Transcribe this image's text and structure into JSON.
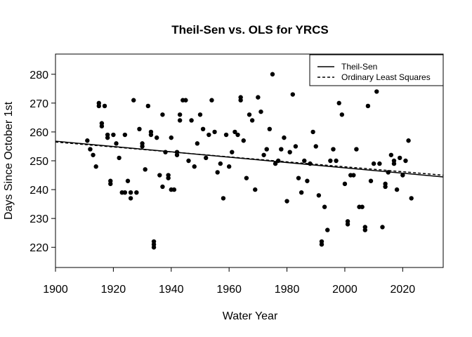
{
  "chart_data": {
    "type": "scatter",
    "title": "Theil-Sen vs. OLS for YRCS",
    "xlabel": "Water Year",
    "ylabel": "Days Since October 1st",
    "xlim": [
      1900,
      2034
    ],
    "ylim": [
      213,
      287
    ],
    "x_ticks": [
      1900,
      1920,
      1940,
      1960,
      1980,
      2000,
      2020
    ],
    "y_ticks": [
      220,
      230,
      240,
      250,
      260,
      270,
      280
    ],
    "grid": false,
    "legend": {
      "position": "top-right",
      "entries": [
        {
          "label": "Theil-Sen",
          "style": "solid"
        },
        {
          "label": "Ordinary Least Squares",
          "style": "dashed"
        }
      ]
    },
    "lines": [
      {
        "name": "Theil-Sen",
        "style": "solid",
        "points": [
          [
            1900,
            256.8
          ],
          [
            2034,
            244.4
          ]
        ]
      },
      {
        "name": "Ordinary Least Squares",
        "style": "dashed",
        "points": [
          [
            1900,
            256.5
          ],
          [
            2034,
            245.0
          ]
        ]
      }
    ],
    "points": [
      [
        1911,
        257
      ],
      [
        1912,
        254
      ],
      [
        1913,
        252
      ],
      [
        1914,
        248
      ],
      [
        1915,
        270
      ],
      [
        1915,
        269
      ],
      [
        1916,
        263
      ],
      [
        1916,
        262
      ],
      [
        1917,
        269
      ],
      [
        1918,
        259
      ],
      [
        1918,
        258
      ],
      [
        1919,
        243
      ],
      [
        1919,
        242
      ],
      [
        1920,
        259
      ],
      [
        1921,
        256
      ],
      [
        1922,
        251
      ],
      [
        1923,
        239
      ],
      [
        1924,
        259
      ],
      [
        1924,
        239
      ],
      [
        1925,
        243
      ],
      [
        1926,
        239
      ],
      [
        1926,
        237
      ],
      [
        1927,
        271
      ],
      [
        1928,
        239
      ],
      [
        1929,
        261
      ],
      [
        1930,
        256
      ],
      [
        1930,
        255
      ],
      [
        1931,
        247
      ],
      [
        1932,
        269
      ],
      [
        1933,
        260
      ],
      [
        1933,
        259
      ],
      [
        1934,
        222
      ],
      [
        1934,
        221
      ],
      [
        1934,
        220
      ],
      [
        1935,
        258
      ],
      [
        1936,
        245
      ],
      [
        1937,
        266
      ],
      [
        1937,
        241
      ],
      [
        1938,
        253
      ],
      [
        1939,
        245
      ],
      [
        1939,
        244
      ],
      [
        1940,
        258
      ],
      [
        1940,
        240
      ],
      [
        1941,
        240
      ],
      [
        1942,
        253
      ],
      [
        1942,
        252
      ],
      [
        1943,
        266
      ],
      [
        1943,
        264
      ],
      [
        1944,
        271
      ],
      [
        1945,
        271
      ],
      [
        1946,
        250
      ],
      [
        1947,
        264
      ],
      [
        1948,
        248
      ],
      [
        1949,
        256
      ],
      [
        1950,
        266
      ],
      [
        1951,
        261
      ],
      [
        1952,
        251
      ],
      [
        1953,
        259
      ],
      [
        1954,
        271
      ],
      [
        1955,
        260
      ],
      [
        1956,
        246
      ],
      [
        1957,
        249
      ],
      [
        1958,
        237
      ],
      [
        1959,
        259
      ],
      [
        1960,
        248
      ],
      [
        1961,
        253
      ],
      [
        1962,
        260
      ],
      [
        1963,
        259
      ],
      [
        1964,
        272
      ],
      [
        1964,
        271
      ],
      [
        1965,
        257
      ],
      [
        1966,
        244
      ],
      [
        1967,
        266
      ],
      [
        1968,
        264
      ],
      [
        1969,
        240
      ],
      [
        1970,
        272
      ],
      [
        1971,
        267
      ],
      [
        1972,
        252
      ],
      [
        1973,
        254
      ],
      [
        1974,
        261
      ],
      [
        1975,
        280
      ],
      [
        1976,
        249
      ],
      [
        1977,
        250
      ],
      [
        1978,
        254
      ],
      [
        1979,
        258
      ],
      [
        1980,
        236
      ],
      [
        1981,
        253
      ],
      [
        1982,
        273
      ],
      [
        1983,
        255
      ],
      [
        1984,
        244
      ],
      [
        1985,
        239
      ],
      [
        1986,
        250
      ],
      [
        1987,
        243
      ],
      [
        1988,
        249
      ],
      [
        1989,
        260
      ],
      [
        1990,
        255
      ],
      [
        1991,
        238
      ],
      [
        1992,
        222
      ],
      [
        1992,
        221
      ],
      [
        1993,
        234
      ],
      [
        1994,
        226
      ],
      [
        1995,
        250
      ],
      [
        1996,
        254
      ],
      [
        1997,
        250
      ],
      [
        1998,
        270
      ],
      [
        1999,
        266
      ],
      [
        2000,
        242
      ],
      [
        2001,
        229
      ],
      [
        2001,
        228
      ],
      [
        2002,
        245
      ],
      [
        2003,
        245
      ],
      [
        2004,
        254
      ],
      [
        2005,
        234
      ],
      [
        2006,
        234
      ],
      [
        2007,
        227
      ],
      [
        2007,
        226
      ],
      [
        2008,
        269
      ],
      [
        2009,
        243
      ],
      [
        2010,
        249
      ],
      [
        2011,
        274
      ],
      [
        2012,
        249
      ],
      [
        2013,
        227
      ],
      [
        2014,
        242
      ],
      [
        2014,
        241
      ],
      [
        2015,
        246
      ],
      [
        2016,
        252
      ],
      [
        2017,
        250
      ],
      [
        2017,
        249
      ],
      [
        2018,
        240
      ],
      [
        2019,
        251
      ],
      [
        2020,
        245
      ],
      [
        2021,
        250
      ],
      [
        2022,
        257
      ],
      [
        2023,
        237
      ]
    ]
  }
}
